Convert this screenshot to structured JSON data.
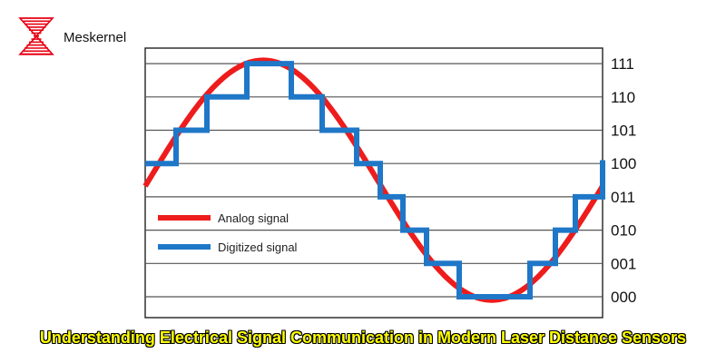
{
  "brand": {
    "name": "Meskernel",
    "logo_color": "#e60012"
  },
  "chart_data": {
    "type": "line",
    "ylim_levels": [
      "000",
      "001",
      "010",
      "011",
      "100",
      "101",
      "110",
      "111"
    ],
    "series": [
      {
        "name": "Analog signal",
        "color": "#ee1c1c",
        "kind": "sine"
      },
      {
        "name": "Digitized signal",
        "color": "#1f77c8",
        "kind": "step",
        "levels": [
          4,
          5,
          6,
          7,
          6,
          5,
          4,
          3,
          2,
          1,
          0,
          1,
          2,
          3,
          4
        ]
      }
    ],
    "grid": true,
    "legend_position": "left-middle"
  },
  "caption": "Understanding Electrical Signal Communication in Modern Laser Distance Sensors"
}
